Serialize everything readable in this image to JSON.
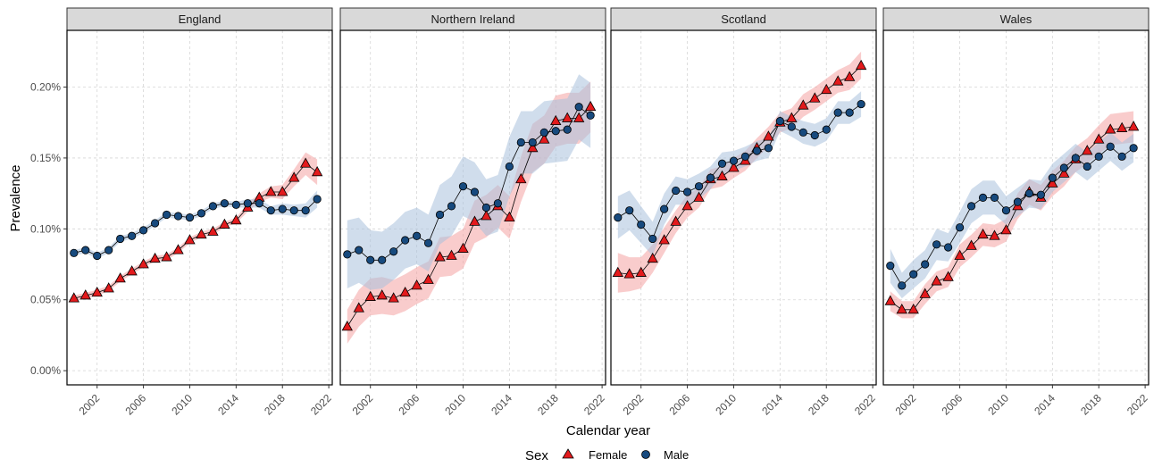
{
  "chart_data": {
    "type": "line",
    "xlabel": "Calendar year",
    "ylabel": "Prevalence",
    "x_ticks": [
      2002,
      2006,
      2010,
      2014,
      2018,
      2022
    ],
    "y_ticks": [
      0,
      0.0005,
      0.001,
      0.0015,
      0.002
    ],
    "y_tick_labels": [
      "0.00%",
      "0.05%",
      "0.10%",
      "0.15%",
      "0.20%"
    ],
    "xlim": [
      1999.4,
      2022.3
    ],
    "ylim": [
      -0.0001,
      0.0024
    ],
    "grid": true,
    "legend": {
      "title": "Sex",
      "position": "bottom",
      "items": [
        {
          "name": "Female",
          "color": "#e31a1c",
          "shape": "triangle"
        },
        {
          "name": "Male",
          "color": "#174a7e",
          "shape": "circle"
        }
      ]
    },
    "colors": {
      "female": "#e31a1c",
      "male": "#174a7e",
      "female_band": "#f4a3a3",
      "male_band": "#a9c1dd"
    },
    "x": [
      2000,
      2001,
      2002,
      2003,
      2004,
      2005,
      2006,
      2007,
      2008,
      2009,
      2010,
      2011,
      2012,
      2013,
      2014,
      2015,
      2016,
      2017,
      2018,
      2019,
      2020,
      2021
    ],
    "panels": [
      {
        "title": "England",
        "series": [
          {
            "name": "Female",
            "values": [
              0.00051,
              0.00053,
              0.00055,
              0.00058,
              0.00065,
              0.0007,
              0.00075,
              0.00079,
              0.0008,
              0.00085,
              0.00092,
              0.00096,
              0.00098,
              0.00103,
              0.00106,
              0.00115,
              0.00122,
              0.00126,
              0.00126,
              0.00136,
              0.00146,
              0.0014
            ],
            "lower": [
              0.00049,
              0.00051,
              0.00053,
              0.00056,
              0.00063,
              0.00068,
              0.00073,
              0.00077,
              0.00078,
              0.00083,
              0.0009,
              0.00094,
              0.00096,
              0.00101,
              0.00104,
              0.00112,
              0.00119,
              0.00122,
              0.00121,
              0.0013,
              0.00138,
              0.00131
            ],
            "upper": [
              0.00053,
              0.00055,
              0.00057,
              0.0006,
              0.00067,
              0.00072,
              0.00077,
              0.00081,
              0.00082,
              0.00087,
              0.00094,
              0.00098,
              0.001,
              0.00105,
              0.00108,
              0.00118,
              0.00125,
              0.0013,
              0.00131,
              0.00142,
              0.00154,
              0.00149
            ]
          },
          {
            "name": "Male",
            "values": [
              0.00083,
              0.00085,
              0.00081,
              0.00085,
              0.00093,
              0.00095,
              0.00099,
              0.00104,
              0.0011,
              0.00109,
              0.00108,
              0.00111,
              0.00116,
              0.00118,
              0.00117,
              0.00118,
              0.00118,
              0.00113,
              0.00114,
              0.00113,
              0.00113,
              0.00121
            ],
            "lower": [
              0.00081,
              0.00083,
              0.00079,
              0.00083,
              0.00091,
              0.00093,
              0.00097,
              0.00102,
              0.00108,
              0.00107,
              0.00106,
              0.00109,
              0.00114,
              0.00116,
              0.00115,
              0.00115,
              0.00115,
              0.0011,
              0.0011,
              0.00109,
              0.00108,
              0.00115
            ],
            "upper": [
              0.00085,
              0.00087,
              0.00083,
              0.00087,
              0.00095,
              0.00097,
              0.00101,
              0.00106,
              0.00112,
              0.00111,
              0.0011,
              0.00113,
              0.00118,
              0.0012,
              0.00119,
              0.00121,
              0.00121,
              0.00116,
              0.00118,
              0.00117,
              0.00118,
              0.00127
            ]
          }
        ]
      },
      {
        "title": "Northern Ireland",
        "series": [
          {
            "name": "Female",
            "values": [
              0.00031,
              0.00044,
              0.00052,
              0.00053,
              0.00051,
              0.00055,
              0.0006,
              0.00064,
              0.0008,
              0.00081,
              0.00086,
              0.00105,
              0.00109,
              0.00116,
              0.00108,
              0.00135,
              0.00157,
              0.00163,
              0.00176,
              0.00178,
              0.00178,
              0.00186
            ],
            "lower": [
              0.00019,
              0.00031,
              0.00039,
              0.0004,
              0.00039,
              0.00042,
              0.00047,
              0.00051,
              0.00066,
              0.00067,
              0.00072,
              0.0009,
              0.00094,
              0.00101,
              0.00093,
              0.00119,
              0.0014,
              0.00146,
              0.00158,
              0.0016,
              0.0016,
              0.00168
            ],
            "upper": [
              0.00043,
              0.00057,
              0.00065,
              0.00066,
              0.00064,
              0.00068,
              0.00073,
              0.00077,
              0.00094,
              0.00095,
              0.001,
              0.0012,
              0.00124,
              0.00131,
              0.00123,
              0.00151,
              0.00174,
              0.0018,
              0.00194,
              0.00196,
              0.00196,
              0.00204
            ]
          },
          {
            "name": "Male",
            "values": [
              0.00082,
              0.00085,
              0.00078,
              0.00078,
              0.00084,
              0.00092,
              0.00095,
              0.0009,
              0.0011,
              0.00116,
              0.0013,
              0.00126,
              0.00115,
              0.00118,
              0.00144,
              0.00161,
              0.00161,
              0.00168,
              0.00169,
              0.0017,
              0.00186,
              0.0018
            ],
            "lower": [
              0.00058,
              0.00062,
              0.00057,
              0.00058,
              0.00064,
              0.00072,
              0.00075,
              0.0007,
              0.00089,
              0.00095,
              0.00109,
              0.00105,
              0.00095,
              0.00098,
              0.00123,
              0.00139,
              0.00139,
              0.00146,
              0.00147,
              0.00148,
              0.00163,
              0.00157
            ],
            "upper": [
              0.00106,
              0.00108,
              0.00099,
              0.00098,
              0.00104,
              0.00112,
              0.00115,
              0.0011,
              0.00131,
              0.00137,
              0.00151,
              0.00147,
              0.00135,
              0.00138,
              0.00165,
              0.00183,
              0.00183,
              0.0019,
              0.00191,
              0.00192,
              0.00209,
              0.00203
            ]
          }
        ]
      },
      {
        "title": "Scotland",
        "series": [
          {
            "name": "Female",
            "values": [
              0.00069,
              0.00068,
              0.00069,
              0.00079,
              0.00092,
              0.00105,
              0.00116,
              0.00122,
              0.00135,
              0.00137,
              0.00143,
              0.00148,
              0.00157,
              0.00165,
              0.00175,
              0.00178,
              0.00187,
              0.00192,
              0.00198,
              0.00204,
              0.00207,
              0.00215
            ],
            "lower": [
              0.00055,
              0.00056,
              0.00058,
              0.00069,
              0.00083,
              0.00097,
              0.00108,
              0.00115,
              0.00128,
              0.0013,
              0.00136,
              0.00141,
              0.0015,
              0.00158,
              0.00168,
              0.00171,
              0.00179,
              0.00184,
              0.0019,
              0.00196,
              0.00198,
              0.00206
            ],
            "upper": [
              0.00083,
              0.0008,
              0.0008,
              0.00089,
              0.00101,
              0.00113,
              0.00124,
              0.00129,
              0.00142,
              0.00144,
              0.0015,
              0.00155,
              0.00164,
              0.00172,
              0.00182,
              0.00185,
              0.00195,
              0.002,
              0.00206,
              0.00212,
              0.00216,
              0.00225
            ]
          },
          {
            "name": "Male",
            "values": [
              0.00108,
              0.00113,
              0.00103,
              0.00093,
              0.00114,
              0.00127,
              0.00126,
              0.0013,
              0.00136,
              0.00146,
              0.00148,
              0.00151,
              0.00155,
              0.00157,
              0.00176,
              0.00172,
              0.00168,
              0.00166,
              0.0017,
              0.00182,
              0.00182,
              0.00188
            ],
            "lower": [
              0.00093,
              0.00099,
              0.0009,
              0.00081,
              0.00103,
              0.00117,
              0.00117,
              0.00121,
              0.00128,
              0.00138,
              0.00141,
              0.00144,
              0.00148,
              0.0015,
              0.00169,
              0.00165,
              0.0016,
              0.00158,
              0.00162,
              0.00174,
              0.00174,
              0.00179
            ],
            "upper": [
              0.00123,
              0.00127,
              0.00116,
              0.00105,
              0.00125,
              0.00137,
              0.00135,
              0.00139,
              0.00144,
              0.00154,
              0.00155,
              0.00158,
              0.00162,
              0.00164,
              0.00183,
              0.00179,
              0.00176,
              0.00174,
              0.00178,
              0.0019,
              0.0019,
              0.00197
            ]
          }
        ]
      },
      {
        "title": "Wales",
        "series": [
          {
            "name": "Female",
            "values": [
              0.00049,
              0.00043,
              0.00043,
              0.00054,
              0.00063,
              0.00066,
              0.00081,
              0.00088,
              0.00096,
              0.00095,
              0.00099,
              0.00116,
              0.00126,
              0.00122,
              0.00132,
              0.00139,
              0.00149,
              0.00155,
              0.00163,
              0.0017,
              0.00171,
              0.00172
            ],
            "lower": [
              0.00042,
              0.00037,
              0.00037,
              0.00047,
              0.00056,
              0.00059,
              0.00073,
              0.0008,
              0.00088,
              0.00087,
              0.00091,
              0.00107,
              0.00117,
              0.00113,
              0.00123,
              0.0013,
              0.0014,
              0.00146,
              0.00153,
              0.00159,
              0.0016,
              0.00161
            ],
            "upper": [
              0.00056,
              0.00049,
              0.00049,
              0.00061,
              0.0007,
              0.00073,
              0.00089,
              0.00096,
              0.00104,
              0.00103,
              0.00107,
              0.00125,
              0.00135,
              0.00131,
              0.00141,
              0.00148,
              0.00158,
              0.00164,
              0.00173,
              0.00181,
              0.00182,
              0.00183
            ]
          },
          {
            "name": "Male",
            "values": [
              0.00074,
              0.0006,
              0.00068,
              0.00075,
              0.00089,
              0.00087,
              0.00101,
              0.00116,
              0.00122,
              0.00122,
              0.00113,
              0.00119,
              0.00125,
              0.00124,
              0.00136,
              0.00143,
              0.0015,
              0.00144,
              0.00151,
              0.00158,
              0.00151,
              0.00157
            ],
            "lower": [
              0.00062,
              0.00051,
              0.00058,
              0.00065,
              0.00078,
              0.00077,
              0.0009,
              0.00104,
              0.0011,
              0.0011,
              0.00103,
              0.00109,
              0.00115,
              0.00114,
              0.00126,
              0.00133,
              0.0014,
              0.00134,
              0.00141,
              0.00148,
              0.00141,
              0.00147
            ],
            "upper": [
              0.00086,
              0.00069,
              0.00078,
              0.00085,
              0.001,
              0.00097,
              0.00112,
              0.00128,
              0.00134,
              0.00134,
              0.00123,
              0.00129,
              0.00135,
              0.00134,
              0.00146,
              0.00153,
              0.0016,
              0.00154,
              0.00161,
              0.00168,
              0.00161,
              0.00167
            ]
          }
        ]
      }
    ]
  }
}
